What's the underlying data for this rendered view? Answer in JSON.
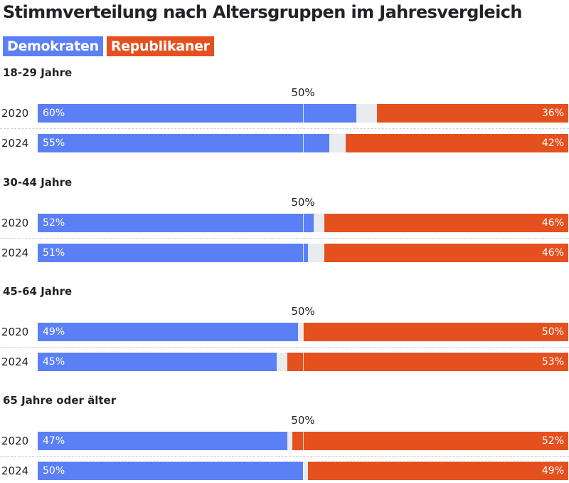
{
  "chart_data": {
    "type": "bar",
    "orientation": "horizontal-stacked",
    "title": "Stimmverteilung nach Altersgruppen im Jahresvergleich",
    "legend": [
      {
        "name": "Demokraten",
        "color": "#5b7ff5"
      },
      {
        "name": "Republikaner",
        "color": "#e5501f"
      }
    ],
    "reference_line": {
      "value": 50,
      "label": "50%"
    },
    "xlim": [
      0,
      100
    ],
    "groups": [
      {
        "label": "18-29 Jahre",
        "rows": [
          {
            "year": "2020",
            "dem": 60,
            "rep": 36,
            "dem_label": "60%",
            "rep_label": "36%"
          },
          {
            "year": "2024",
            "dem": 55,
            "rep": 42,
            "dem_label": "55%",
            "rep_label": "42%"
          }
        ]
      },
      {
        "label": "30-44 Jahre",
        "rows": [
          {
            "year": "2020",
            "dem": 52,
            "rep": 46,
            "dem_label": "52%",
            "rep_label": "46%"
          },
          {
            "year": "2024",
            "dem": 51,
            "rep": 46,
            "dem_label": "51%",
            "rep_label": "46%"
          }
        ]
      },
      {
        "label": "45-64 Jahre",
        "rows": [
          {
            "year": "2020",
            "dem": 49,
            "rep": 50,
            "dem_label": "49%",
            "rep_label": "50%"
          },
          {
            "year": "2024",
            "dem": 45,
            "rep": 53,
            "dem_label": "45%",
            "rep_label": "53%"
          }
        ]
      },
      {
        "label": "65 Jahre oder älter",
        "rows": [
          {
            "year": "2020",
            "dem": 47,
            "rep": 52,
            "dem_label": "47%",
            "rep_label": "52%"
          },
          {
            "year": "2024",
            "dem": 50,
            "rep": 49,
            "dem_label": "50%",
            "rep_label": "49%"
          }
        ]
      }
    ]
  }
}
